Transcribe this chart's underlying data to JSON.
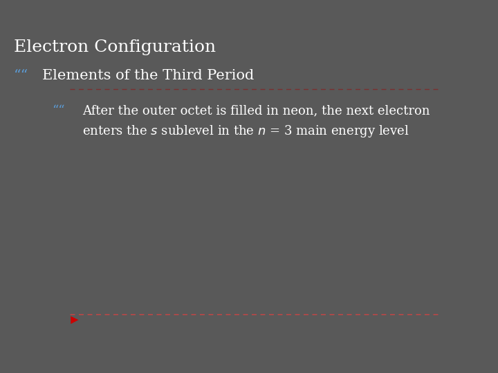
{
  "title": "Electron Configuration",
  "background_color": "#595959",
  "title_color": "#FFFFFF",
  "title_fontsize": 18,
  "top_separator_color": "#7B3030",
  "bullet_color": "#5B9BD5",
  "bullet1_text": "Elements of the Third Period",
  "bullet1_fontsize": 15,
  "bullet2_text_line1": "After the outer octet is filled in neon, the next electron",
  "bullet2_text_line2": "enters the ",
  "bullet2_text_s": "s",
  "bullet2_text_mid": " sublevel in the ",
  "bullet2_text_n": "n",
  "bullet2_text_end": " = 3 main energy level",
  "bullet2_fontsize": 13,
  "text_color": "#FFFFFF",
  "bottom_arrow_color": "#CC0000",
  "bottom_line_color": "#CC4444"
}
